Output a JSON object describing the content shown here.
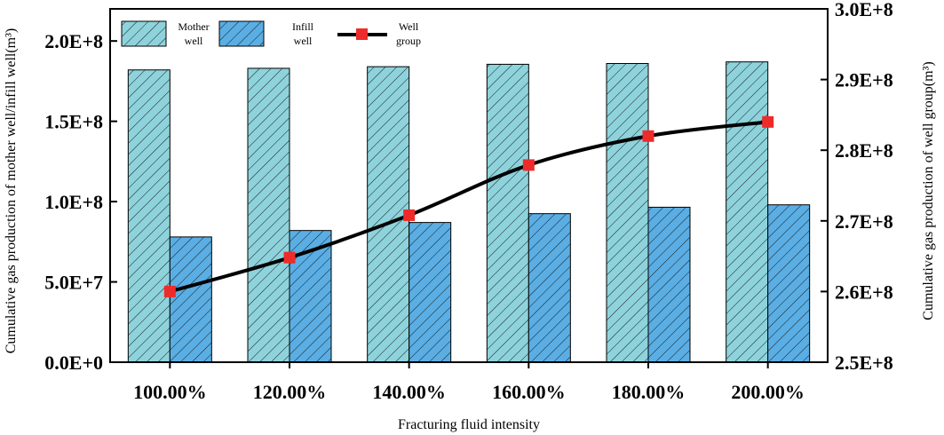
{
  "chart_data": {
    "type": "bar",
    "title": "",
    "categories": [
      "100.00%",
      "120.00%",
      "140.00%",
      "160.00%",
      "180.00%",
      "200.00%"
    ],
    "series": [
      {
        "name": "Mother well",
        "axis": "left",
        "kind": "bar",
        "color": "#8ED3DC",
        "values": [
          182000000,
          183000000,
          184000000,
          185500000,
          186000000,
          187000000
        ]
      },
      {
        "name": "Infill well",
        "axis": "left",
        "kind": "bar",
        "color": "#5AAEE4",
        "values": [
          78000000,
          82000000,
          87000000,
          92500000,
          96500000,
          98000000
        ]
      },
      {
        "name": "Well group",
        "axis": "right",
        "kind": "line",
        "color": "#000000",
        "marker_color": "#EE2B2B",
        "values": [
          260000000,
          264800000,
          270800000,
          277900000,
          282000000,
          284000000
        ]
      }
    ],
    "xlabel": "Fracturing fluid intensity",
    "ylabel": "Cumulative gas production of mother well/infill well(m³)",
    "y2label": "Cumulative gas production of well group(m³)",
    "ylim": [
      0,
      220000000
    ],
    "y2lim": [
      250000000,
      300000000
    ],
    "yticks": [
      "0.0E+0",
      "5.0E+7",
      "1.0E+8",
      "1.5E+8",
      "2.0E+8"
    ],
    "y2ticks": [
      "2.5E+8",
      "2.6E+8",
      "2.7E+8",
      "2.8E+8",
      "2.9E+8",
      "3.0E+8"
    ],
    "yticks_values": [
      0,
      50000000,
      100000000,
      150000000,
      200000000
    ],
    "y2ticks_values": [
      250000000,
      260000000,
      270000000,
      280000000,
      290000000,
      300000000
    ],
    "legend": {
      "placement": "top-left",
      "mother_label_1": "Mother",
      "mother_label_2": "well",
      "infill_label_1": "Infill",
      "infill_label_2": "well",
      "group_label_1": "Well",
      "group_label_2": "group"
    },
    "grid": false
  }
}
